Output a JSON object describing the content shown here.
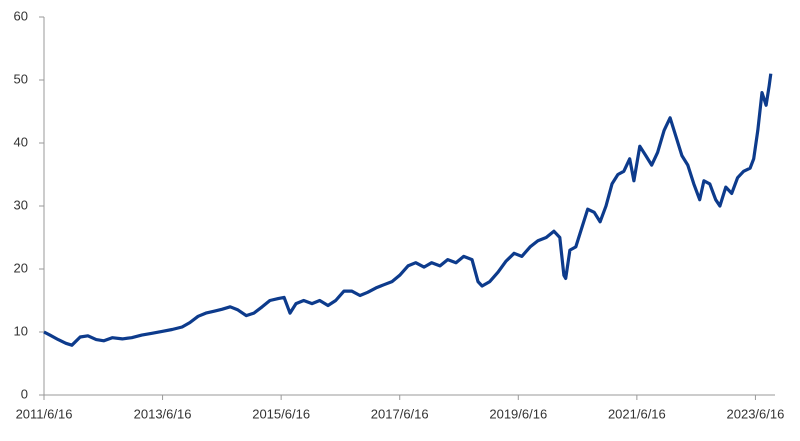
{
  "chart_data": {
    "type": "line",
    "x": [
      2011.46,
      2011.56,
      2011.7,
      2011.83,
      2011.93,
      2012.07,
      2012.2,
      2012.34,
      2012.47,
      2012.61,
      2012.78,
      2012.94,
      2013.11,
      2013.28,
      2013.45,
      2013.62,
      2013.79,
      2013.92,
      2014.06,
      2014.19,
      2014.33,
      2014.46,
      2014.6,
      2014.73,
      2014.87,
      2015.0,
      2015.14,
      2015.27,
      2015.41,
      2015.51,
      2015.61,
      2015.71,
      2015.84,
      2015.98,
      2016.11,
      2016.25,
      2016.38,
      2016.52,
      2016.65,
      2016.79,
      2016.92,
      2017.06,
      2017.19,
      2017.33,
      2017.46,
      2017.6,
      2017.73,
      2017.87,
      2018.0,
      2018.14,
      2018.27,
      2018.41,
      2018.54,
      2018.68,
      2018.78,
      2018.85,
      2018.98,
      2019.12,
      2019.25,
      2019.39,
      2019.52,
      2019.66,
      2019.79,
      2019.93,
      2020.06,
      2020.16,
      2020.23,
      2020.26,
      2020.33,
      2020.43,
      2020.53,
      2020.63,
      2020.74,
      2020.84,
      2020.94,
      2021.04,
      2021.14,
      2021.24,
      2021.34,
      2021.41,
      2021.51,
      2021.61,
      2021.71,
      2021.81,
      2021.92,
      2022.02,
      2022.12,
      2022.22,
      2022.32,
      2022.42,
      2022.52,
      2022.59,
      2022.69,
      2022.79,
      2022.86,
      2022.96,
      2023.06,
      2023.16,
      2023.26,
      2023.37,
      2023.43,
      2023.5,
      2023.57,
      2023.64,
      2023.69,
      2023.72
    ],
    "series": [
      {
        "color": "#0d3b8c",
        "values": [
          10,
          9.5,
          8.8,
          8.2,
          7.9,
          9.2,
          9.4,
          8.8,
          8.6,
          9.1,
          8.9,
          9.1,
          9.5,
          9.8,
          10.1,
          10.4,
          10.8,
          11.5,
          12.5,
          13,
          13.3,
          13.6,
          14,
          13.5,
          12.6,
          13,
          14,
          15,
          15.3,
          15.5,
          13,
          14.5,
          15,
          14.5,
          15,
          14.2,
          15,
          16.5,
          16.5,
          15.8,
          16.3,
          17,
          17.5,
          18,
          19,
          20.5,
          21,
          20.3,
          21,
          20.5,
          21.5,
          21,
          22,
          21.5,
          18,
          17.3,
          18,
          19.5,
          21.2,
          22.5,
          22,
          23.5,
          24.5,
          25,
          26,
          25,
          19,
          18.5,
          23,
          23.5,
          26.5,
          29.5,
          29,
          27.5,
          30,
          33.5,
          35,
          35.5,
          37.5,
          34,
          39.5,
          38,
          36.5,
          38.5,
          42,
          44,
          41,
          38,
          36.5,
          33.5,
          31,
          34,
          33.5,
          31,
          30,
          33,
          32,
          34.5,
          35.5,
          36,
          37.5,
          42,
          48,
          46,
          49,
          51
        ]
      }
    ],
    "xlim": [
      2011.46,
      2023.79
    ],
    "xticks": [
      {
        "value": 2011.46,
        "label": "2011/6/16"
      },
      {
        "value": 2013.46,
        "label": "2013/6/16"
      },
      {
        "value": 2015.46,
        "label": "2015/6/16"
      },
      {
        "value": 2017.46,
        "label": "2017/6/16"
      },
      {
        "value": 2019.46,
        "label": "2019/6/16"
      },
      {
        "value": 2021.46,
        "label": "2021/6/16"
      },
      {
        "value": 2023.46,
        "label": "2023/6/16"
      }
    ],
    "ylim": [
      0,
      60
    ],
    "yticks": [
      0,
      10,
      20,
      30,
      40,
      50,
      60
    ],
    "grid": false
  }
}
